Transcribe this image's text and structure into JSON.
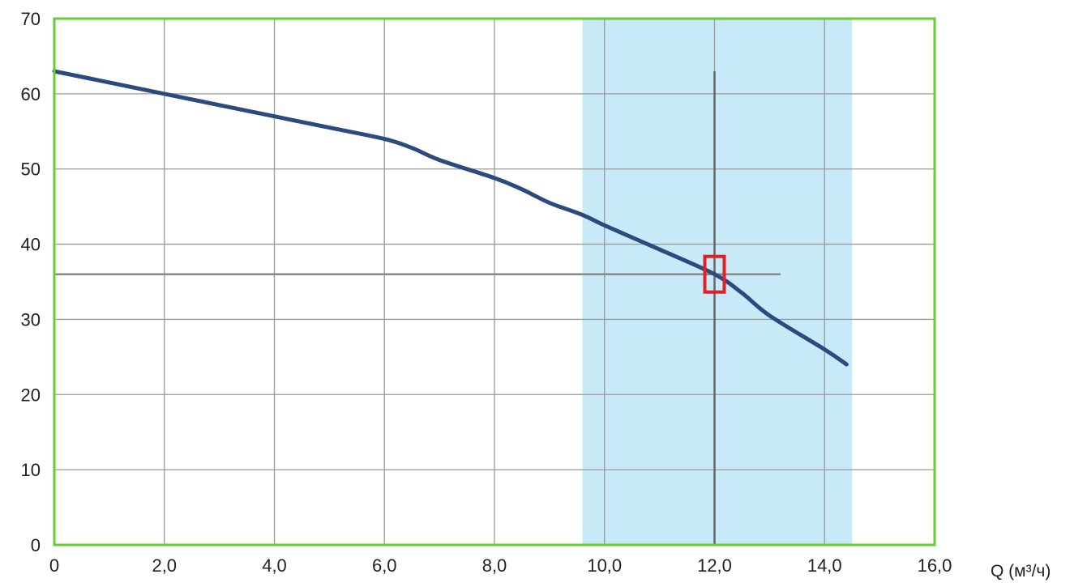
{
  "chart_data": {
    "type": "line",
    "title": "",
    "xlabel": "Q (м³/ч)",
    "ylabel": "",
    "xlim": [
      0,
      16
    ],
    "ylim": [
      0,
      70
    ],
    "grid": true,
    "x_ticks": [
      0,
      2,
      4,
      6,
      8,
      10,
      12,
      14,
      16
    ],
    "x_tick_labels": [
      "0",
      "2,0",
      "4,0",
      "6,0",
      "8,0",
      "10,0",
      "12,0",
      "14,0",
      "16,0"
    ],
    "y_ticks": [
      0,
      10,
      20,
      30,
      40,
      50,
      60,
      70
    ],
    "y_tick_labels": [
      "0",
      "10",
      "20",
      "30",
      "40",
      "50",
      "60",
      "70"
    ],
    "series": [
      {
        "x": [
          0,
          1,
          2,
          3,
          4,
          5,
          6,
          6.5,
          7,
          8,
          8.5,
          9,
          9.6,
          10,
          11,
          12,
          12.5,
          13,
          14,
          14.4
        ],
        "values": [
          63,
          61.5,
          60,
          58.5,
          57,
          55.5,
          54,
          52.8,
          51.2,
          48.8,
          47.3,
          45.5,
          43.9,
          42.5,
          39.3,
          36,
          33.5,
          30.5,
          26,
          24
        ]
      }
    ],
    "recommended_range": [
      9.6,
      14.5
    ],
    "operating_point": {
      "x": 12,
      "y": 36
    },
    "colors": {
      "curve": "#2b4a7e",
      "range_fill": "#c8e9f8",
      "frame": "#66cc33",
      "grid": "#9a9a9a",
      "guide": "#888888",
      "marker": "#e31e24"
    }
  }
}
